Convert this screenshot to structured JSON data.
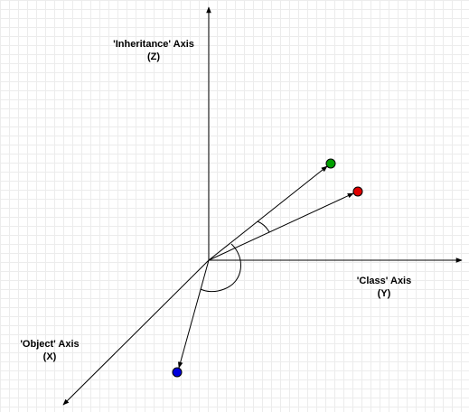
{
  "axes": {
    "z": {
      "name": "'Inheritance' Axis",
      "letter": "(Z)"
    },
    "y": {
      "name": "'Class' Axis",
      "letter": "(Y)"
    },
    "x": {
      "name": "'Object' Axis",
      "letter": "(X)"
    }
  },
  "points": [
    {
      "name": "green-point",
      "color": "#00a000"
    },
    {
      "name": "red-point",
      "color": "#e00000"
    },
    {
      "name": "blue-point",
      "color": "#0000dd"
    }
  ],
  "colors": {
    "axis": "#000000",
    "grid": "#ececec"
  }
}
